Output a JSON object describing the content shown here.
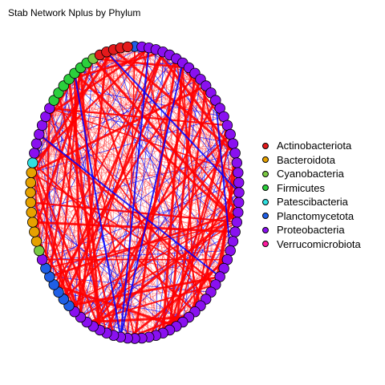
{
  "title": "Stab Network Nplus by Phylum",
  "edge_colors": {
    "positive": "#ff0000",
    "negative": "#0000ff"
  },
  "legend": [
    {
      "label": "Actinobacteriota",
      "color": "#e41a1c"
    },
    {
      "label": "Bacteroidota",
      "color": "#e6a100"
    },
    {
      "label": "Cyanobacteria",
      "color": "#7ac943"
    },
    {
      "label": "Firmicutes",
      "color": "#2bcf3c"
    },
    {
      "label": "Patescibacteria",
      "color": "#2fe0e0"
    },
    {
      "label": "Planctomycetota",
      "color": "#1f5fe6"
    },
    {
      "label": "Proteobacteria",
      "color": "#8a10f0"
    },
    {
      "label": "Verrucomicrobiota",
      "color": "#ff1aa0"
    }
  ]
}
